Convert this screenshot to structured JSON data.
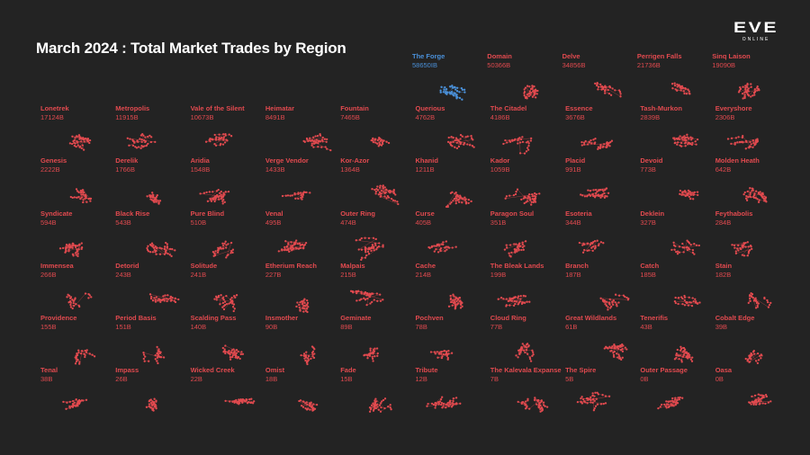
{
  "title": "March 2024 : Total Market Trades by Region",
  "logo": {
    "main": "EVE",
    "sub": "ONLINE"
  },
  "colors": {
    "background": "#232323",
    "highlight": "#4a90d9",
    "normal": "#e24a4f",
    "title": "#ffffff"
  },
  "chart_data": {
    "type": "small-multiples",
    "title": "March 2024 : Total Market Trades by Region",
    "regions": [
      {
        "name": "The Forge",
        "value": "58650IB"
      },
      {
        "name": "Domain",
        "value": "50366B"
      },
      {
        "name": "Delve",
        "value": "34856B"
      },
      {
        "name": "Perrigen Falls",
        "value": "21736B"
      },
      {
        "name": "Sinq Laison",
        "value": "19090B"
      },
      {
        "name": "Lonetrek",
        "value": "17124B"
      },
      {
        "name": "Metropolis",
        "value": "11915B"
      },
      {
        "name": "Vale of the Silent",
        "value": "10673B"
      },
      {
        "name": "Heimatar",
        "value": "8491B"
      },
      {
        "name": "Fountain",
        "value": "7465B"
      },
      {
        "name": "Querious",
        "value": "4762B"
      },
      {
        "name": "The Citadel",
        "value": "4186B"
      },
      {
        "name": "Essence",
        "value": "3676B"
      },
      {
        "name": "Tash-Murkon",
        "value": "2839B"
      },
      {
        "name": "Everyshore",
        "value": "2306B"
      },
      {
        "name": "Genesis",
        "value": "2222B"
      },
      {
        "name": "Derelik",
        "value": "1766B"
      },
      {
        "name": "Aridia",
        "value": "1548B"
      },
      {
        "name": "Verge Vendor",
        "value": "1433B"
      },
      {
        "name": "Kor-Azor",
        "value": "1364B"
      },
      {
        "name": "Khanid",
        "value": "1211B"
      },
      {
        "name": "Kador",
        "value": "1059B"
      },
      {
        "name": "Placid",
        "value": "991B"
      },
      {
        "name": "Devoid",
        "value": "773B"
      },
      {
        "name": "Molden Heath",
        "value": "642B"
      },
      {
        "name": "Syndicate",
        "value": "594B"
      },
      {
        "name": "Black Rise",
        "value": "543B"
      },
      {
        "name": "Pure Blind",
        "value": "510B"
      },
      {
        "name": "Venal",
        "value": "495B"
      },
      {
        "name": "Outer Ring",
        "value": "474B"
      },
      {
        "name": "Curse",
        "value": "405B"
      },
      {
        "name": "Paragon Soul",
        "value": "351B"
      },
      {
        "name": "Esoteria",
        "value": "344B"
      },
      {
        "name": "Deklein",
        "value": "327B"
      },
      {
        "name": "Feythabolis",
        "value": "284B"
      },
      {
        "name": "Immensea",
        "value": "266B"
      },
      {
        "name": "Detorid",
        "value": "243B"
      },
      {
        "name": "Solitude",
        "value": "241B"
      },
      {
        "name": "Etherium Reach",
        "value": "227B"
      },
      {
        "name": "Malpais",
        "value": "215B"
      },
      {
        "name": "Cache",
        "value": "214B"
      },
      {
        "name": "The Bleak Lands",
        "value": "199B"
      },
      {
        "name": "Branch",
        "value": "187B"
      },
      {
        "name": "Catch",
        "value": "185B"
      },
      {
        "name": "Stain",
        "value": "182B"
      },
      {
        "name": "Providence",
        "value": "155B"
      },
      {
        "name": "Period Basis",
        "value": "151B"
      },
      {
        "name": "Scalding Pass",
        "value": "140B"
      },
      {
        "name": "Insmother",
        "value": "90B"
      },
      {
        "name": "Geminate",
        "value": "89B"
      },
      {
        "name": "Pochven",
        "value": "78B"
      },
      {
        "name": "Cloud Ring",
        "value": "77B"
      },
      {
        "name": "Great Wildlands",
        "value": "61B"
      },
      {
        "name": "Tenerifis",
        "value": "43B"
      },
      {
        "name": "Cobalt Edge",
        "value": "39B"
      },
      {
        "name": "Tenal",
        "value": "38B"
      },
      {
        "name": "Impass",
        "value": "26B"
      },
      {
        "name": "Wicked Creek",
        "value": "22B"
      },
      {
        "name": "Omist",
        "value": "18B"
      },
      {
        "name": "Fade",
        "value": "15B"
      },
      {
        "name": "Tribute",
        "value": "12B"
      },
      {
        "name": "The Kalevala Expanse",
        "value": "7B"
      },
      {
        "name": "The Spire",
        "value": "5B"
      },
      {
        "name": "Outer Passage",
        "value": "0B"
      },
      {
        "name": "Oasa",
        "value": "0B"
      }
    ]
  }
}
